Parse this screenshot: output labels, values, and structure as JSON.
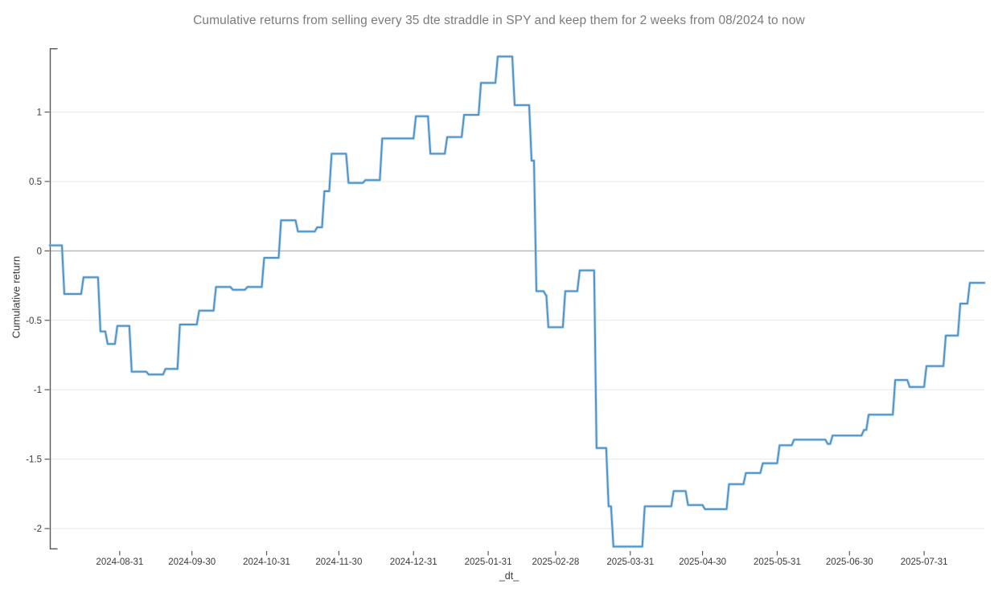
{
  "chart_data": {
    "type": "line",
    "line_style": "step-after",
    "title": "Cumulative returns from selling every 35 dte straddle in SPY and keep them for 2 weeks from 08/2024 to now",
    "xlabel": "_dt_",
    "ylabel": "Cumulative return",
    "x_tick_labels": [
      "2024-08-31",
      "2024-09-30",
      "2024-10-31",
      "2024-11-30",
      "2024-12-31",
      "2025-01-31",
      "2025-02-28",
      "2025-03-31",
      "2025-04-30",
      "2025-05-31",
      "2025-06-30",
      "2025-07-31"
    ],
    "y_tick_labels": [
      "1",
      "0.5",
      "0",
      "-0.5",
      "-1",
      "-1.5",
      "-2"
    ],
    "y_tick_values": [
      1,
      0.5,
      0,
      -0.5,
      -1,
      -1.5,
      -2
    ],
    "xlim": [
      "2024-08-02",
      "2025-08-25"
    ],
    "ylim": [
      -2.15,
      1.46
    ],
    "grid": "horizontal-only",
    "legend": "none",
    "colors": {
      "line": "#4e94c8",
      "line_halo": "#a5c9e4",
      "grid": "#e7e7e7",
      "zero_line": "#b0b0b0",
      "axis": "#595959",
      "tick_text": "#3a3a3a",
      "title_text": "#7b7b7b",
      "background": "#ffffff"
    },
    "series": [
      {
        "name": "Cumulative return",
        "points": [
          [
            "2024-08-02",
            0.04
          ],
          [
            "2024-08-08",
            -0.31
          ],
          [
            "2024-08-16",
            -0.19
          ],
          [
            "2024-08-23",
            -0.58
          ],
          [
            "2024-08-26",
            -0.67
          ],
          [
            "2024-08-30",
            -0.54
          ],
          [
            "2024-09-05",
            -0.87
          ],
          [
            "2024-09-12",
            -0.89
          ],
          [
            "2024-09-19",
            -0.85
          ],
          [
            "2024-09-25",
            -0.53
          ],
          [
            "2024-10-03",
            -0.43
          ],
          [
            "2024-10-10",
            -0.26
          ],
          [
            "2024-10-17",
            -0.28
          ],
          [
            "2024-10-23",
            -0.26
          ],
          [
            "2024-10-30",
            -0.05
          ],
          [
            "2024-11-06",
            0.22
          ],
          [
            "2024-11-13",
            0.14
          ],
          [
            "2024-11-21",
            0.17
          ],
          [
            "2024-11-24",
            0.43
          ],
          [
            "2024-11-27",
            0.7
          ],
          [
            "2024-12-04",
            0.49
          ],
          [
            "2024-12-11",
            0.51
          ],
          [
            "2024-12-18",
            0.81
          ],
          [
            "2025-01-01",
            0.97
          ],
          [
            "2025-01-07",
            0.7
          ],
          [
            "2025-01-14",
            0.82
          ],
          [
            "2025-01-21",
            0.98
          ],
          [
            "2025-01-28",
            1.21
          ],
          [
            "2025-02-04",
            1.4
          ],
          [
            "2025-02-11",
            1.05
          ],
          [
            "2025-02-18",
            0.65
          ],
          [
            "2025-02-20",
            -0.29
          ],
          [
            "2025-02-24",
            -0.32
          ],
          [
            "2025-02-25",
            -0.55
          ],
          [
            "2025-03-04",
            -0.29
          ],
          [
            "2025-03-10",
            -0.14
          ],
          [
            "2025-03-17",
            -1.42
          ],
          [
            "2025-03-22",
            -1.84
          ],
          [
            "2025-03-24",
            -2.13
          ],
          [
            "2025-04-06",
            -1.84
          ],
          [
            "2025-04-18",
            -1.73
          ],
          [
            "2025-04-24",
            -1.83
          ],
          [
            "2025-05-01",
            -1.86
          ],
          [
            "2025-05-11",
            -1.68
          ],
          [
            "2025-05-18",
            -1.6
          ],
          [
            "2025-05-25",
            -1.53
          ],
          [
            "2025-06-01",
            -1.4
          ],
          [
            "2025-06-07",
            -1.36
          ],
          [
            "2025-06-21",
            -1.39
          ],
          [
            "2025-06-23",
            -1.33
          ],
          [
            "2025-07-06",
            -1.29
          ],
          [
            "2025-07-08",
            -1.18
          ],
          [
            "2025-07-19",
            -0.93
          ],
          [
            "2025-07-25",
            -0.98
          ],
          [
            "2025-08-01",
            -0.83
          ],
          [
            "2025-08-09",
            -0.61
          ],
          [
            "2025-08-15",
            -0.38
          ],
          [
            "2025-08-19",
            -0.23
          ],
          [
            "2025-08-25",
            -0.23
          ]
        ]
      }
    ]
  }
}
